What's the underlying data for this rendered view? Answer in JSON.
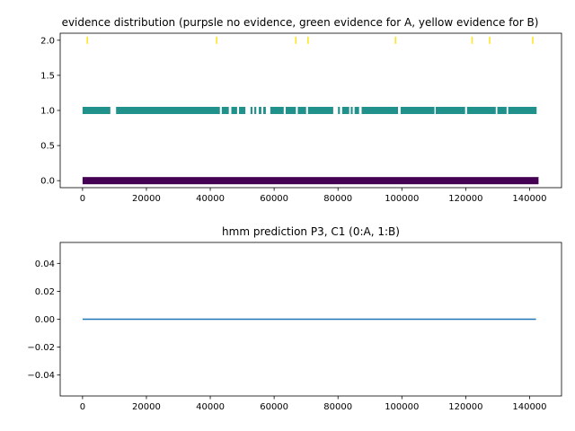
{
  "chart_data": [
    {
      "type": "scatter",
      "title": "evidence distribution (purpsle no evidence, green evidence for A, yellow evidence for B)",
      "xlim": [
        -7000,
        150000
      ],
      "ylim": [
        -0.1,
        2.1
      ],
      "xticks": [
        0,
        20000,
        40000,
        60000,
        80000,
        100000,
        120000,
        140000
      ],
      "xtick_labels": [
        "0",
        "20000",
        "40000",
        "60000",
        "80000",
        "100000",
        "120000",
        "140000"
      ],
      "yticks": [
        0.0,
        0.5,
        1.0,
        1.5,
        2.0
      ],
      "ytick_labels": [
        "0.0",
        "0.5",
        "1.0",
        "1.5",
        "2.0"
      ],
      "series": [
        {
          "color": "#440154",
          "y": 0,
          "segments": [
            [
              0,
              142800
            ]
          ]
        },
        {
          "color": "#21918c",
          "y": 1,
          "segments": [
            [
              0,
              8700
            ],
            [
              10500,
              43000
            ],
            [
              43600,
              45800
            ],
            [
              46600,
              48400
            ],
            [
              49000,
              51000
            ],
            [
              52600,
              53200
            ],
            [
              53800,
              54400
            ],
            [
              55200,
              56000
            ],
            [
              56600,
              57400
            ],
            [
              58800,
              63000
            ],
            [
              63600,
              66800
            ],
            [
              67400,
              70000
            ],
            [
              70600,
              78500
            ],
            [
              80000,
              80600
            ],
            [
              81300,
              83500
            ],
            [
              84000,
              84600
            ],
            [
              85200,
              86600
            ],
            [
              87400,
              98800
            ],
            [
              99600,
              110200
            ],
            [
              110600,
              119800
            ],
            [
              120400,
              129400
            ],
            [
              129900,
              132800
            ],
            [
              133300,
              142200
            ]
          ]
        },
        {
          "color": "#fde725",
          "y": 2,
          "x": [
            1500,
            42000,
            66800,
            70600,
            98000,
            122000,
            127500,
            141000
          ]
        }
      ]
    },
    {
      "type": "line",
      "title": "hmm prediction P3, C1 (0:A, 1:B)",
      "xlim": [
        -7000,
        150000
      ],
      "ylim": [
        -0.055,
        0.055
      ],
      "xticks": [
        0,
        20000,
        40000,
        60000,
        80000,
        100000,
        120000,
        140000
      ],
      "xtick_labels": [
        "0",
        "20000",
        "40000",
        "60000",
        "80000",
        "100000",
        "120000",
        "140000"
      ],
      "yticks": [
        -0.04,
        -0.02,
        0.0,
        0.02,
        0.04
      ],
      "ytick_labels": [
        "−0.04",
        "−0.02",
        "0.00",
        "0.02",
        "0.04"
      ],
      "series": [
        {
          "color": "#1f77b4",
          "x": [
            0,
            142000
          ],
          "y": [
            0,
            0
          ]
        }
      ]
    }
  ]
}
